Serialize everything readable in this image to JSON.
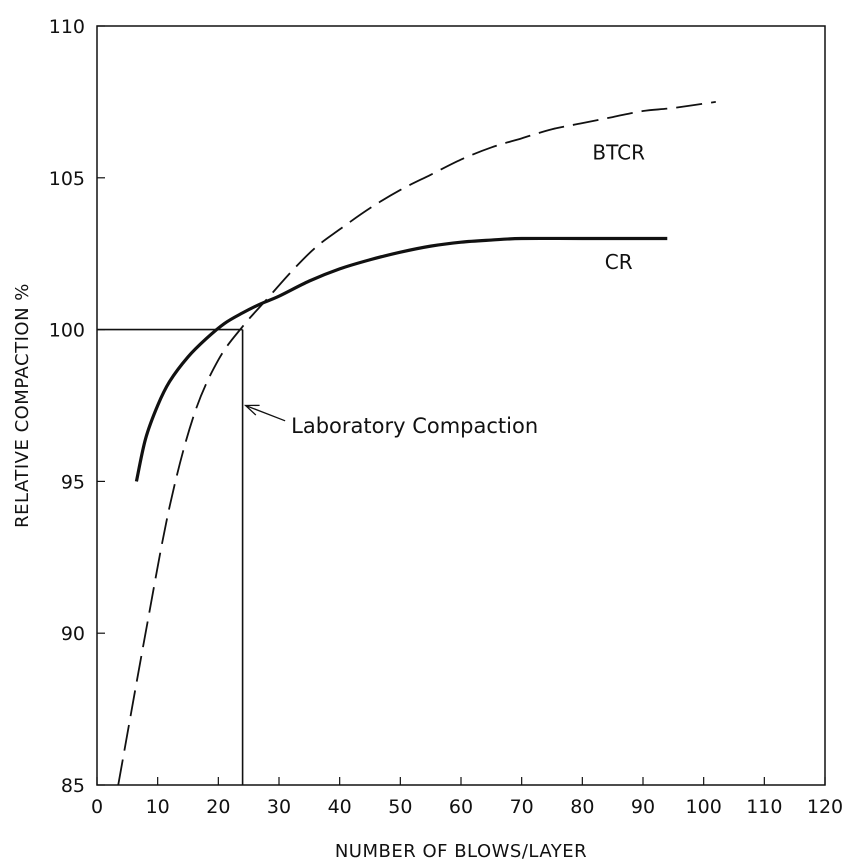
{
  "chart_data": {
    "type": "line",
    "title": "",
    "xlabel": "NUMBER OF BLOWS/LAYER",
    "ylabel": "RELATIVE COMPACTION %",
    "xlim": [
      0,
      120
    ],
    "ylim": [
      85,
      110
    ],
    "x_ticks": [
      0,
      10,
      20,
      30,
      40,
      50,
      60,
      70,
      80,
      90,
      100,
      110,
      120
    ],
    "x_tick_labels": [
      "0",
      "10",
      "20",
      "30",
      "40",
      "50",
      "60",
      "70",
      "80",
      "90",
      "100",
      "110",
      "120"
    ],
    "y_ticks": [
      85,
      90,
      95,
      100,
      105,
      110
    ],
    "y_tick_labels": [
      "85",
      "90",
      "95",
      "100",
      "105",
      "110"
    ],
    "grid": false,
    "legend": "none",
    "series": [
      {
        "name": "BTCR",
        "style": "dashed",
        "color": "#111111",
        "x": [
          3.5,
          8,
          12,
          16,
          20,
          24,
          28,
          32,
          36,
          40,
          45,
          50,
          55,
          60,
          65,
          70,
          75,
          80,
          85,
          90,
          95,
          102
        ],
        "y": [
          85.0,
          90.0,
          94.2,
          97.2,
          99.0,
          100.1,
          101.0,
          101.9,
          102.7,
          103.3,
          104.0,
          104.6,
          105.1,
          105.6,
          106.0,
          106.3,
          106.6,
          106.8,
          107.0,
          107.2,
          107.3,
          107.5
        ]
      },
      {
        "name": "CR",
        "style": "solid",
        "color": "#111111",
        "x": [
          6.5,
          8,
          10,
          12,
          15,
          18,
          21,
          24,
          27,
          30,
          35,
          40,
          45,
          50,
          55,
          60,
          65,
          70,
          80,
          94
        ],
        "y": [
          95.0,
          96.4,
          97.5,
          98.3,
          99.1,
          99.7,
          100.2,
          100.55,
          100.85,
          101.1,
          101.6,
          102.0,
          102.3,
          102.55,
          102.75,
          102.88,
          102.95,
          103.0,
          103.0,
          103.0
        ]
      }
    ],
    "reference_lines": [
      {
        "from": [
          0,
          100
        ],
        "to": [
          24,
          100
        ]
      },
      {
        "from": [
          24,
          85
        ],
        "to": [
          24,
          100
        ]
      }
    ],
    "series_labels": [
      {
        "text": "BTCR",
        "x": 86,
        "y": 105.6
      },
      {
        "text": "CR",
        "x": 86,
        "y": 102.0
      }
    ],
    "annotations": [
      {
        "text": "Laboratory Compaction",
        "arrow_to_x": 24,
        "arrow_to_y": 97.5,
        "text_x": 32,
        "text_y": 96.6
      }
    ]
  }
}
